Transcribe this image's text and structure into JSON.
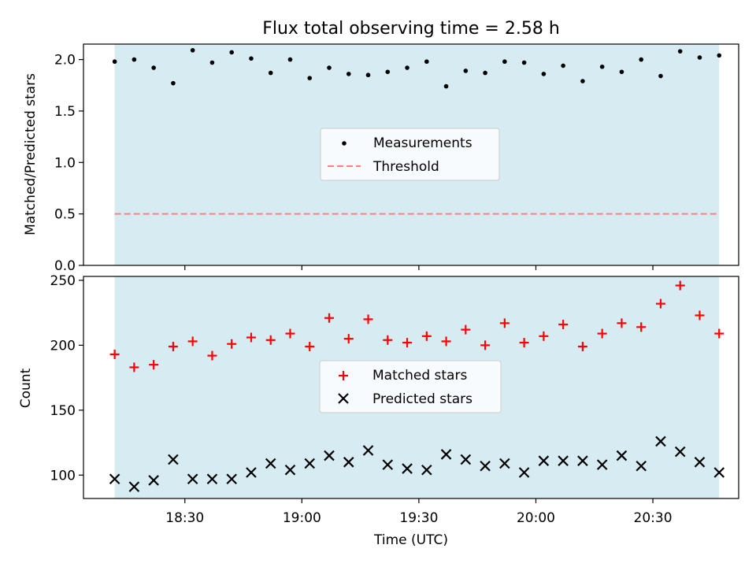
{
  "chart_data": [
    {
      "type": "scatter",
      "title": "Flux total observing time = 2.58 h",
      "ylabel": "Matched/Predicted stars",
      "ylim": [
        0,
        2.15
      ],
      "yticks": [
        0.0,
        0.5,
        1.0,
        1.5,
        2.0
      ],
      "ytick_labels": [
        "0.0",
        "0.5",
        "1.0",
        "1.5",
        "2.0"
      ],
      "x_times": [
        "18:12",
        "18:17",
        "18:22",
        "18:27",
        "18:32",
        "18:37",
        "18:42",
        "18:47",
        "18:52",
        "18:57",
        "19:02",
        "19:07",
        "19:12",
        "19:17",
        "19:22",
        "19:27",
        "19:32",
        "19:37",
        "19:42",
        "19:47",
        "19:52",
        "19:57",
        "20:02",
        "20:07",
        "20:12",
        "20:17",
        "20:22",
        "20:27",
        "20:32",
        "20:37",
        "20:42",
        "20:47"
      ],
      "series": [
        {
          "name": "Measurements",
          "values": [
            1.98,
            2.0,
            1.92,
            1.77,
            2.09,
            1.97,
            2.07,
            2.01,
            1.87,
            2.0,
            1.82,
            1.92,
            1.86,
            1.85,
            1.88,
            1.92,
            1.98,
            1.74,
            1.89,
            1.87,
            1.98,
            1.97,
            1.86,
            1.94,
            1.79,
            1.93,
            1.88,
            2.0,
            1.84,
            2.08,
            2.02,
            2.04
          ]
        },
        {
          "name": "Threshold",
          "value": 0.5
        }
      ],
      "legend": "center"
    },
    {
      "type": "scatter",
      "ylabel": "Count",
      "xlabel": "Time (UTC)",
      "ylim": [
        82,
        253
      ],
      "yticks": [
        100,
        150,
        200,
        250
      ],
      "ytick_labels": [
        "100",
        "150",
        "200",
        "250"
      ],
      "xticks": [
        "18:30",
        "19:00",
        "19:30",
        "20:00",
        "20:30"
      ],
      "xlim": [
        "18:04",
        "20:52"
      ],
      "x_times": [
        "18:12",
        "18:17",
        "18:22",
        "18:27",
        "18:32",
        "18:37",
        "18:42",
        "18:47",
        "18:52",
        "18:57",
        "19:02",
        "19:07",
        "19:12",
        "19:17",
        "19:22",
        "19:27",
        "19:32",
        "19:37",
        "19:42",
        "19:47",
        "19:52",
        "19:57",
        "20:02",
        "20:07",
        "20:12",
        "20:17",
        "20:22",
        "20:27",
        "20:32",
        "20:37",
        "20:42",
        "20:47"
      ],
      "series": [
        {
          "name": "Matched stars",
          "values": [
            193,
            183,
            185,
            199,
            203,
            192,
            201,
            206,
            204,
            209,
            199,
            221,
            205,
            220,
            204,
            202,
            207,
            203,
            212,
            200,
            217,
            202,
            207,
            216,
            199,
            209,
            217,
            214,
            232,
            246,
            223,
            209
          ]
        },
        {
          "name": "Predicted stars",
          "values": [
            97,
            91,
            96,
            112,
            97,
            97,
            97,
            102,
            109,
            104,
            109,
            115,
            110,
            119,
            108,
            105,
            104,
            116,
            112,
            107,
            109,
            102,
            111,
            111,
            111,
            108,
            115,
            107,
            126,
            118,
            110,
            102
          ]
        }
      ],
      "legend": "center"
    }
  ],
  "colors": {
    "span_fill": "#add8e6",
    "measurement": "#000000",
    "threshold": "#ff7f7f",
    "matched": "#ff0000",
    "predicted": "#000000"
  }
}
